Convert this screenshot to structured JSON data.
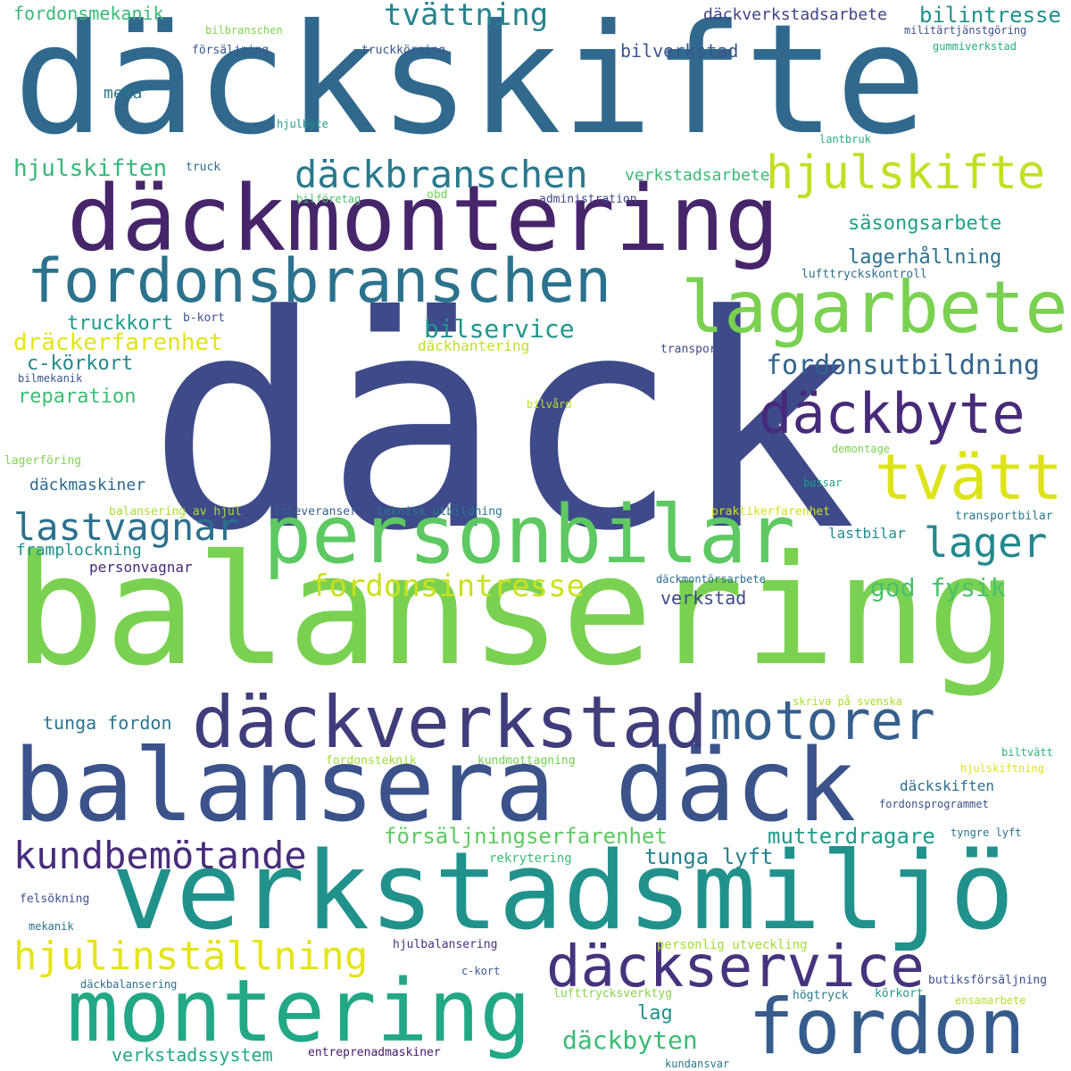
{
  "words": [
    {
      "text": "däck",
      "color": "#3e4a89"
    },
    {
      "text": "däckskifte",
      "color": "#31688e"
    },
    {
      "text": "balansering",
      "color": "#7ad151"
    },
    {
      "text": "däckmontering",
      "color": "#46256b"
    },
    {
      "text": "verkstadsmiljö",
      "color": "#21918c"
    },
    {
      "text": "balansera däck",
      "color": "#3b528b"
    },
    {
      "text": "personbilar",
      "color": "#5ec962"
    },
    {
      "text": "fordonsbranschen",
      "color": "#2c728e"
    },
    {
      "text": "lagarbete",
      "color": "#7ad151"
    },
    {
      "text": "montering",
      "color": "#22a884"
    },
    {
      "text": "fordon",
      "color": "#365c8d"
    },
    {
      "text": "däckverkstad",
      "color": "#3f3d7c"
    },
    {
      "text": "däckbyte",
      "color": "#472a7a"
    },
    {
      "text": "däckservice",
      "color": "#46337e"
    },
    {
      "text": "motorer",
      "color": "#355f8d"
    },
    {
      "text": "tvätt",
      "color": "#dde318"
    },
    {
      "text": "hjulskifte",
      "color": "#c2df23"
    },
    {
      "text": "däckbranschen",
      "color": "#2a788e"
    },
    {
      "text": "lastvagnar",
      "color": "#2d708e"
    },
    {
      "text": "lager",
      "color": "#23888e"
    },
    {
      "text": "hjulinställning",
      "color": "#e5e419"
    },
    {
      "text": "kundbemötande",
      "color": "#472d7b"
    },
    {
      "text": "fordonsintresse",
      "color": "#cae11f"
    },
    {
      "text": "tvättning",
      "color": "#26828e"
    },
    {
      "text": "fordonsutbildning",
      "color": "#33638d"
    },
    {
      "text": "försäljningserfarenhet",
      "color": "#5ec962"
    },
    {
      "text": "god fysik",
      "color": "#4ac16d"
    },
    {
      "text": "däckbyten",
      "color": "#3bbb75"
    },
    {
      "text": "mutterdragare",
      "color": "#1e9c89"
    },
    {
      "text": "tunga lyft",
      "color": "#27808e"
    },
    {
      "text": "bilservice",
      "color": "#1f968b"
    },
    {
      "text": "hjulskiften",
      "color": "#35b779"
    },
    {
      "text": "säsongsarbete",
      "color": "#1fa187"
    },
    {
      "text": "lagerhållning",
      "color": "#2c718e"
    },
    {
      "text": "dräckerfarenhet",
      "color": "#e2e418"
    },
    {
      "text": "bilintresse",
      "color": "#21918c"
    },
    {
      "text": "fordonsmekanik",
      "color": "#38b977"
    },
    {
      "text": "verkstadssystem",
      "color": "#22a785"
    },
    {
      "text": "bilverkstad",
      "color": "#39558c"
    },
    {
      "text": "reparation",
      "color": "#3fbc73"
    },
    {
      "text": "c-körkort",
      "color": "#24878e"
    },
    {
      "text": "truckkort",
      "color": "#1f9a8a"
    },
    {
      "text": "tunga fordon",
      "color": "#2b758e"
    },
    {
      "text": "däckmaskiner",
      "color": "#30698e"
    },
    {
      "text": "verkstadsarbete",
      "color": "#3aba76"
    },
    {
      "text": "framplockning",
      "color": "#21908d"
    },
    {
      "text": "personvagnar",
      "color": "#482979"
    },
    {
      "text": "verkstad",
      "color": "#3e4a89"
    },
    {
      "text": "lastbilar",
      "color": "#23898e"
    },
    {
      "text": "lag",
      "color": "#21918c"
    },
    {
      "text": "däckskiften",
      "color": "#2e6f8e"
    },
    {
      "text": "däckverkstadsarbete",
      "color": "#414487"
    },
    {
      "text": "meka",
      "color": "#2a768e"
    },
    {
      "text": "däckhantering",
      "color": "#c0df25"
    },
    {
      "text": "rekrytering",
      "color": "#3bbb75"
    },
    {
      "text": "hjulbalansering",
      "color": "#46317e"
    },
    {
      "text": "personlig utveckling",
      "color": "#a5db36"
    },
    {
      "text": "skriva på svenska",
      "color": "#addc30"
    },
    {
      "text": "fordonsteknik",
      "color": "#a2da37"
    },
    {
      "text": "kundmottagning",
      "color": "#75d054"
    },
    {
      "text": "inleveranser",
      "color": "#355f8d"
    },
    {
      "text": "teknisk utbildning",
      "color": "#2a768e"
    },
    {
      "text": "balansering av hjul",
      "color": "#aadc32"
    },
    {
      "text": "praktikerfarenhet",
      "color": "#d2e21b"
    },
    {
      "text": "transportbilar",
      "color": "#2a788e"
    },
    {
      "text": "bussar",
      "color": "#1f9e89"
    },
    {
      "text": "lagerföring",
      "color": "#7fd34e"
    },
    {
      "text": "bilmekanik",
      "color": "#39568c"
    },
    {
      "text": "b-kort",
      "color": "#3b528b"
    },
    {
      "text": "transport",
      "color": "#3e4a89"
    },
    {
      "text": "bilvård",
      "color": "#c2df23"
    },
    {
      "text": "demontage",
      "color": "#7ad151"
    },
    {
      "text": "lufttryckskontroll",
      "color": "#2d708e"
    },
    {
      "text": "lantbruk",
      "color": "#29af7f"
    },
    {
      "text": "administration",
      "color": "#3e4989"
    },
    {
      "text": "obd",
      "color": "#73d056"
    },
    {
      "text": "bilföretag",
      "color": "#4ac16d"
    },
    {
      "text": "truck",
      "color": "#2f6c8e"
    },
    {
      "text": "hjulbyte",
      "color": "#1f9a8a"
    },
    {
      "text": "bilbranschen",
      "color": "#7fd34e"
    },
    {
      "text": "försäljning",
      "color": "#39568c"
    },
    {
      "text": "truckkörning",
      "color": "#39568c"
    },
    {
      "text": "militärtjänstgöring",
      "color": "#3b528b"
    },
    {
      "text": "gummiverkstad",
      "color": "#26ad81"
    },
    {
      "text": "däckmontörsarbete",
      "color": "#2d708e"
    },
    {
      "text": "biltvätt",
      "color": "#2db27d"
    },
    {
      "text": "hjulskiftning",
      "color": "#dde318"
    },
    {
      "text": "fordonsprogrammet",
      "color": "#3b528b"
    },
    {
      "text": "tyngre lyft",
      "color": "#2c728e"
    },
    {
      "text": "felsökning",
      "color": "#3b528b"
    },
    {
      "text": "mekanik",
      "color": "#2c728e"
    },
    {
      "text": "c-kort",
      "color": "#39568c"
    },
    {
      "text": "däckbalansering",
      "color": "#2c728e"
    },
    {
      "text": "lufttrycksverktyg",
      "color": "#86d549"
    },
    {
      "text": "högtryck",
      "color": "#2a788e"
    },
    {
      "text": "körkort",
      "color": "#1f9a8a"
    },
    {
      "text": "butiksförsäljning",
      "color": "#3b528b"
    },
    {
      "text": "ensamarbete",
      "color": "#b5de2b"
    },
    {
      "text": "entreprenadmaskiner",
      "color": "#48186a"
    },
    {
      "text": "kundansvar",
      "color": "#2a788e"
    }
  ]
}
